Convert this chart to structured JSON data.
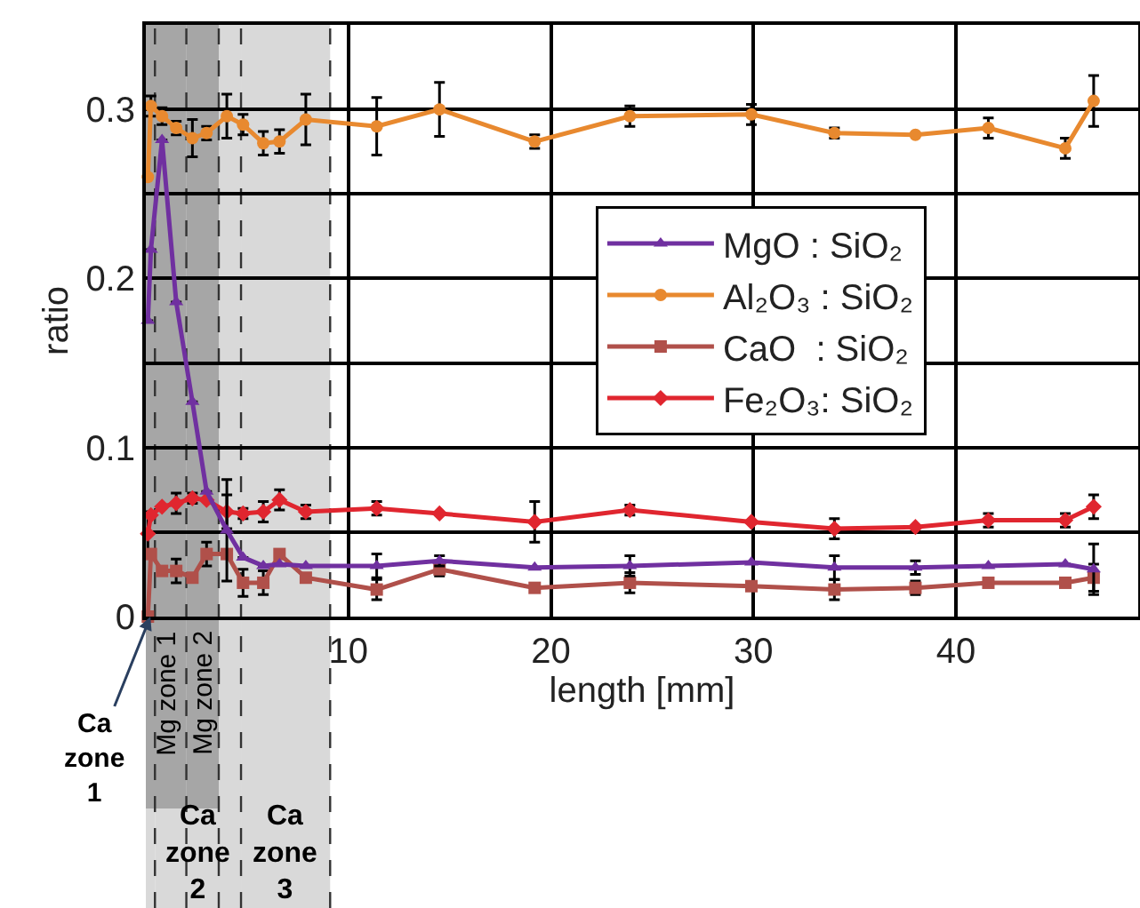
{
  "chart_data": {
    "type": "line",
    "xlabel": "length [mm]",
    "ylabel": "ratio",
    "x": [
      0.1,
      0.25,
      0.8,
      1.5,
      2.3,
      3.0,
      4.0,
      4.8,
      5.8,
      6.6,
      7.9,
      11.4,
      14.5,
      19.2,
      23.9,
      29.9,
      34.0,
      38.0,
      41.6,
      45.4,
      46.8
    ],
    "series": [
      {
        "name": "MgO : SiO₂",
        "color": "#7030a0",
        "marker": "triangle",
        "values": [
          0.175,
          0.217,
          0.282,
          0.186,
          0.127,
          0.074,
          0.051,
          0.035,
          0.03,
          0.031,
          0.03,
          0.03,
          0.033,
          0.029,
          0.03,
          0.032,
          0.029,
          0.029,
          0.03,
          0.031,
          0.028
        ],
        "errors": [
          null,
          null,
          null,
          null,
          null,
          null,
          0.03,
          null,
          null,
          null,
          null,
          0.007,
          0.003,
          null,
          0.006,
          null,
          0.007,
          0.004,
          null,
          null,
          0.015
        ]
      },
      {
        "name": "Al₂O₃ : SiO₂",
        "color": "#e8892f",
        "marker": "circle",
        "values": [
          0.26,
          0.302,
          0.296,
          0.289,
          0.283,
          0.286,
          0.296,
          0.291,
          0.28,
          0.281,
          0.294,
          0.29,
          0.3,
          0.281,
          0.296,
          0.297,
          0.286,
          0.285,
          0.289,
          0.277,
          0.305
        ],
        "errors": [
          null,
          0.006,
          0.005,
          0.004,
          0.011,
          0.004,
          0.013,
          0.006,
          0.007,
          0.007,
          0.015,
          0.017,
          0.016,
          0.004,
          0.006,
          0.006,
          0.003,
          null,
          0.006,
          0.006,
          0.015
        ]
      },
      {
        "name": "CaO  : SiO₂",
        "color": "#b0504a",
        "marker": "square",
        "values": [
          0.0,
          0.037,
          0.027,
          0.027,
          0.023,
          0.037,
          0.037,
          0.02,
          0.02,
          0.037,
          0.023,
          0.016,
          0.028,
          0.017,
          0.02,
          0.018,
          0.016,
          0.017,
          0.02,
          0.02,
          0.023
        ],
        "errors": [
          null,
          null,
          null,
          0.007,
          null,
          0.007,
          null,
          0.008,
          0.007,
          null,
          null,
          0.006,
          0.004,
          null,
          0.006,
          null,
          0.006,
          0.004,
          null,
          null,
          0.008
        ]
      },
      {
        "name": "Fe₂O₃: SiO₂",
        "color": "#e0262f",
        "marker": "diamond",
        "values": [
          0.049,
          0.06,
          0.065,
          0.067,
          0.07,
          0.069,
          0.062,
          0.061,
          0.062,
          0.069,
          0.062,
          0.064,
          0.061,
          0.056,
          0.063,
          0.056,
          0.052,
          0.053,
          0.057,
          0.057,
          0.065
        ],
        "errors": [
          0.013,
          null,
          null,
          0.006,
          0.003,
          null,
          0.01,
          0.003,
          0.006,
          0.006,
          0.004,
          0.004,
          null,
          0.012,
          0.003,
          null,
          0.006,
          null,
          0.004,
          0.004,
          0.007
        ]
      }
    ],
    "xlim": [
      0,
      49
    ],
    "xticks": [
      10,
      20,
      30,
      40
    ],
    "ylim": [
      0,
      0.35
    ],
    "yticks": [
      0,
      {
        "value": 0.05,
        "label": null
      },
      0.1,
      {
        "value": 0.15,
        "label": null
      },
      0.2,
      {
        "value": 0.25,
        "label": null
      },
      0.3
    ],
    "grid": true,
    "legend": "center",
    "bands": [
      {
        "axis": "x",
        "from": 0,
        "to": 0.45,
        "label": "Ca\nzone\n1",
        "color": "#d9d9d9"
      },
      {
        "axis": "x",
        "from": 0.45,
        "to": 4.7,
        "label": "Ca\nzone\n2",
        "color": "#d9d9d9"
      },
      {
        "axis": "x",
        "from": 4.7,
        "to": 9.1,
        "label": "Ca\nzone\n3",
        "color": "#d9d9d9"
      },
      {
        "axis": "x",
        "from": 0,
        "to": 2.0,
        "label": "Mg zone 1",
        "color": "#a6a6a6"
      },
      {
        "axis": "x",
        "from": 2.0,
        "to": 3.6,
        "label": "Mg zone 2",
        "color": "#a6a6a6"
      }
    ]
  }
}
